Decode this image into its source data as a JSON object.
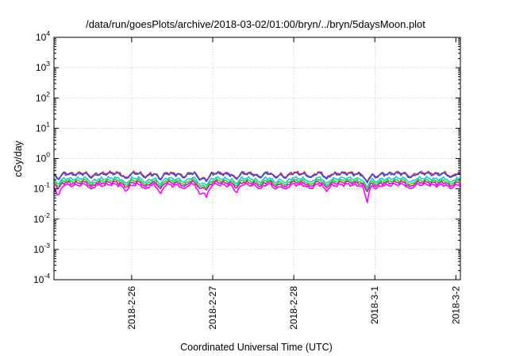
{
  "chart_data": {
    "type": "line",
    "title": "/data/run/goesPlots/archive/2018-03-02/01:00/bryn/../bryn/5daysMoon.plot",
    "xlabel": "Coordinated Universal Time (UTC)",
    "ylabel": "cGy/day",
    "y_scale": "log",
    "ylim": [
      0.0001,
      10000
    ],
    "y_ticks": [
      {
        "base": "10",
        "exp": "-4"
      },
      {
        "base": "10",
        "exp": "-3"
      },
      {
        "base": "10",
        "exp": "-2"
      },
      {
        "base": "10",
        "exp": "-1"
      },
      {
        "base": "10",
        "exp": "0"
      },
      {
        "base": "10",
        "exp": "1"
      },
      {
        "base": "10",
        "exp": "2"
      },
      {
        "base": "10",
        "exp": "3"
      },
      {
        "base": "10",
        "exp": "4"
      }
    ],
    "xlim": [
      "2018-02-25T01:00",
      "2018-03-02T01:20"
    ],
    "x_ticks": [
      "2018-2-26",
      "2018-2-27",
      "2018-2-28",
      "2018-3-1",
      "2018-3-2"
    ],
    "grid": true,
    "colors": {
      "red": "#e8262b",
      "blue": "#3050e8",
      "cyan": "#22c8c8",
      "green": "#3cc83c",
      "purple": "#b02ca0",
      "magenta": "#ff00ff"
    },
    "series": [
      {
        "color": "red",
        "base": 0.33
      },
      {
        "color": "blue",
        "base": 0.31
      },
      {
        "color": "cyan",
        "base": 0.22
      },
      {
        "color": "green",
        "base": 0.185
      },
      {
        "color": "purple",
        "base": 0.16
      },
      {
        "color": "magenta",
        "base": 0.135
      }
    ],
    "dips": [
      {
        "x": "2018-02-25T02:15",
        "depth": 0.7,
        "magenta_min": 0.05
      },
      {
        "x": "2018-02-25T12:00",
        "depth": 0.5
      },
      {
        "x": "2018-02-25T22:20",
        "depth": 0.6,
        "magenta_min": 0.08
      },
      {
        "x": "2018-02-26T04:00",
        "depth": 0.5
      },
      {
        "x": "2018-02-26T08:30",
        "depth": 0.7,
        "magenta_min": 0.065
      },
      {
        "x": "2018-02-26T15:30",
        "depth": 0.5
      },
      {
        "x": "2018-02-26T20:20",
        "depth": 0.75,
        "magenta_min": 0.055
      },
      {
        "x": "2018-02-26T22:10",
        "depth": 0.8,
        "magenta_min": 0.05
      },
      {
        "x": "2018-02-27T07:00",
        "depth": 0.65,
        "magenta_min": 0.07
      },
      {
        "x": "2018-02-27T14:00",
        "depth": 0.5
      },
      {
        "x": "2018-02-27T18:40",
        "depth": 0.5
      },
      {
        "x": "2018-02-27T21:30",
        "depth": 0.55
      },
      {
        "x": "2018-02-28T05:00",
        "depth": 0.5
      },
      {
        "x": "2018-02-28T09:40",
        "depth": 0.6,
        "magenta_min": 0.08
      },
      {
        "x": "2018-02-28T21:40",
        "depth": 0.95,
        "magenta_min": 0.03
      },
      {
        "x": "2018-03-01T00:20",
        "depth": 0.5
      },
      {
        "x": "2018-03-01T10:30",
        "depth": 0.5
      },
      {
        "x": "2018-03-01T22:30",
        "depth": 0.5
      }
    ]
  }
}
